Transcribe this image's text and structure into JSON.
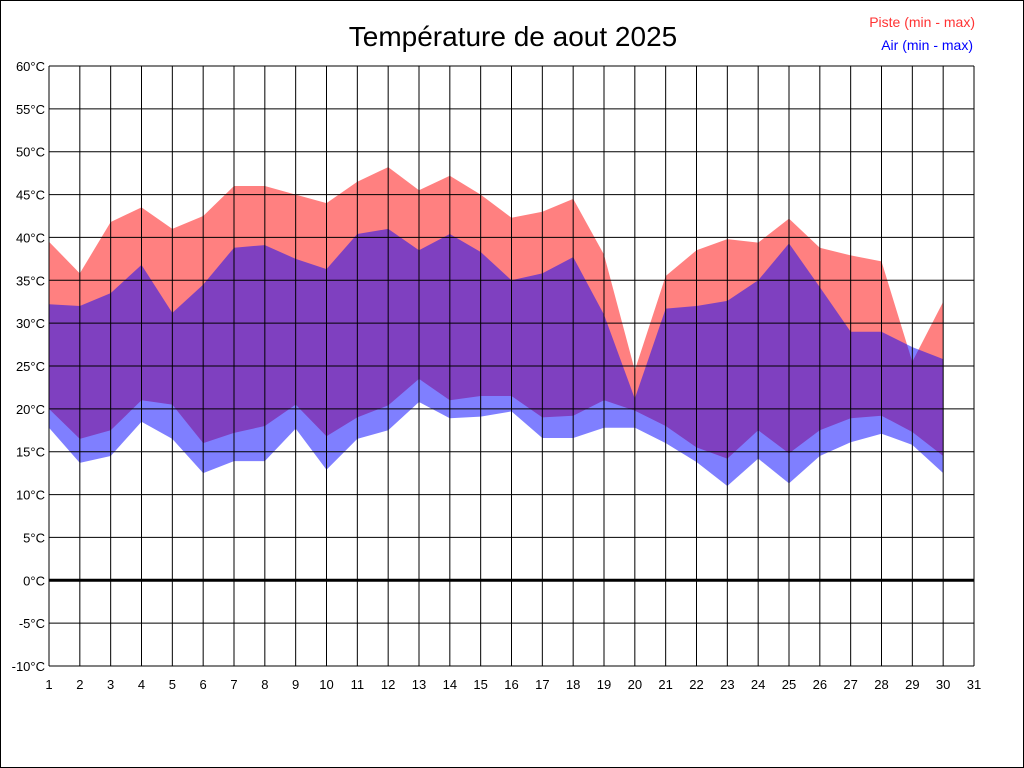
{
  "chart_data": {
    "type": "area",
    "title": "Température de aout 2025",
    "xlabel": "",
    "ylabel": "",
    "xlim": [
      1,
      31
    ],
    "ylim": [
      -10,
      60
    ],
    "y_tick_step": 5,
    "y_unit": "°C",
    "grid": true,
    "legend_position": "top-right",
    "zero_line": true,
    "x": [
      1,
      2,
      3,
      4,
      5,
      6,
      7,
      8,
      9,
      10,
      11,
      12,
      13,
      14,
      15,
      16,
      17,
      18,
      19,
      20,
      21,
      22,
      23,
      24,
      25,
      26,
      27,
      28,
      29,
      30
    ],
    "series": [
      {
        "name": "Piste (min - max)",
        "color": "#ff8080",
        "legend_color": "#ff3333",
        "min": [
          20,
          16.5,
          17.5,
          21,
          20.5,
          16,
          17.2,
          18,
          20.5,
          16.8,
          19,
          20.4,
          23.5,
          21,
          21.5,
          21.5,
          19,
          19.2,
          21,
          19.8,
          18,
          15.5,
          14.2,
          17.5,
          14.8,
          17.5,
          18.9,
          19.2,
          17.3,
          14.5
        ],
        "max": [
          39.5,
          35.8,
          41.8,
          43.5,
          41,
          42.5,
          46,
          46,
          45,
          44,
          46.5,
          48.2,
          45.5,
          47.2,
          45,
          42.3,
          43,
          44.5,
          38,
          24.5,
          35.5,
          38.5,
          39.8,
          39.4,
          42.2,
          38.8,
          37.9,
          37.2,
          25.5,
          32.5
        ]
      },
      {
        "name": "Air (min - max)",
        "color": "#0000ff",
        "legend_color": "#0000ff",
        "min": [
          17.8,
          13.7,
          14.5,
          18.5,
          16.5,
          12.5,
          13.9,
          13.9,
          17.7,
          12.9,
          16.5,
          17.5,
          20.8,
          18.9,
          19.1,
          19.7,
          16.6,
          16.6,
          17.8,
          17.8,
          16,
          13.8,
          11,
          14.2,
          11.3,
          14.5,
          16.1,
          17.1,
          15.8,
          12.5
        ],
        "max": [
          32.2,
          32,
          33.5,
          36.8,
          31.2,
          34.5,
          38.8,
          39.1,
          37.5,
          36.3,
          40.4,
          41,
          38.5,
          40.4,
          38.3,
          35,
          35.8,
          37.7,
          31,
          21.2,
          31.7,
          32,
          32.6,
          35,
          39.3,
          34.2,
          29,
          29,
          27.2,
          25.8
        ]
      }
    ]
  }
}
